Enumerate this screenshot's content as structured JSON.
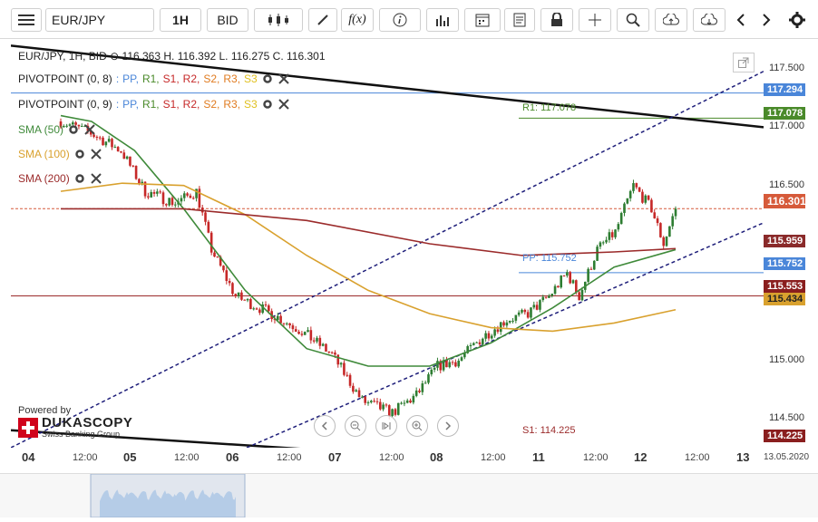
{
  "toolbar": {
    "instrument": "EUR/JPY",
    "timeframe": "1H",
    "side": "BID",
    "fx_label": "f(x)"
  },
  "legend": {
    "ohlc": "EUR/JPY, 1H, BID  ⊙ 116.363 H. 116.392 L. 116.275 C. 116.301",
    "pivot1_name": "PIVOTPOINT (0, 8)",
    "pivot2_name": "PIVOTPOINT (0, 9)",
    "pivot_sep": ":",
    "pivot_pp": "PP,",
    "pivot_r1": "R1,",
    "pivot_s1": "S1,",
    "pivot_r2": "R2,",
    "pivot_s2": "S2,",
    "pivot_r3": "R3,",
    "pivot_s3": "S3",
    "sma50": "SMA (50)",
    "sma100": "SMA (100)",
    "sma200": "SMA (200)"
  },
  "colors": {
    "up": "#2e7d32",
    "down": "#c62828",
    "sma50": "#3f8a3a",
    "sma100": "#d9a12e",
    "sma200": "#9b2b2b",
    "pp": "#4a86d9",
    "r1": "#4a8a2a",
    "s1": "#9b2b2b",
    "channel": "#1e1e7a",
    "trend": "#111111"
  },
  "price_axis": {
    "ticks": [
      "117.500",
      "117.000",
      "116.500",
      "116.000",
      "115.500",
      "115.000",
      "114.500"
    ],
    "flags": {
      "r2": "117.294",
      "r1": "117.078",
      "last": "116.301",
      "sma200": "115.959",
      "pp": "115.752",
      "s_line": "115.553",
      "sma100": "115.434",
      "s1": "114.225"
    }
  },
  "level_labels": {
    "r1": "R1: 117.078",
    "pp": "PP: 115.752",
    "s1": "S1: 114.225"
  },
  "time_axis": {
    "major": [
      "04",
      "05",
      "06",
      "07",
      "08",
      "11",
      "12",
      "13"
    ],
    "minor": [
      "12:00",
      "12:00",
      "12:00",
      "12:00",
      "12:00",
      "12:00",
      "12:00"
    ],
    "date": "13.05.2020"
  },
  "branding": {
    "powered": "Powered by",
    "name": "DUKASCOPY",
    "sub": "Swiss Banking Group"
  },
  "chart_data": {
    "type": "candlestick",
    "instrument": "EUR/JPY",
    "timeframe": "1H",
    "ylim": [
      114.25,
      117.75
    ],
    "levels": [
      {
        "name": "R1",
        "value": 117.078
      },
      {
        "name": "R2",
        "value": 117.294
      },
      {
        "name": "PP",
        "value": 115.752
      },
      {
        "name": "S1",
        "value": 114.225
      },
      {
        "name": "S",
        "value": 115.553
      }
    ],
    "last": {
      "open": 116.363,
      "high": 116.392,
      "low": 116.275,
      "close": 116.301
    },
    "sma": [
      {
        "name": "SMA (50)",
        "last": 115.95
      },
      {
        "name": "SMA (100)",
        "last": 115.434
      },
      {
        "name": "SMA (200)",
        "last": 115.959
      }
    ]
  }
}
